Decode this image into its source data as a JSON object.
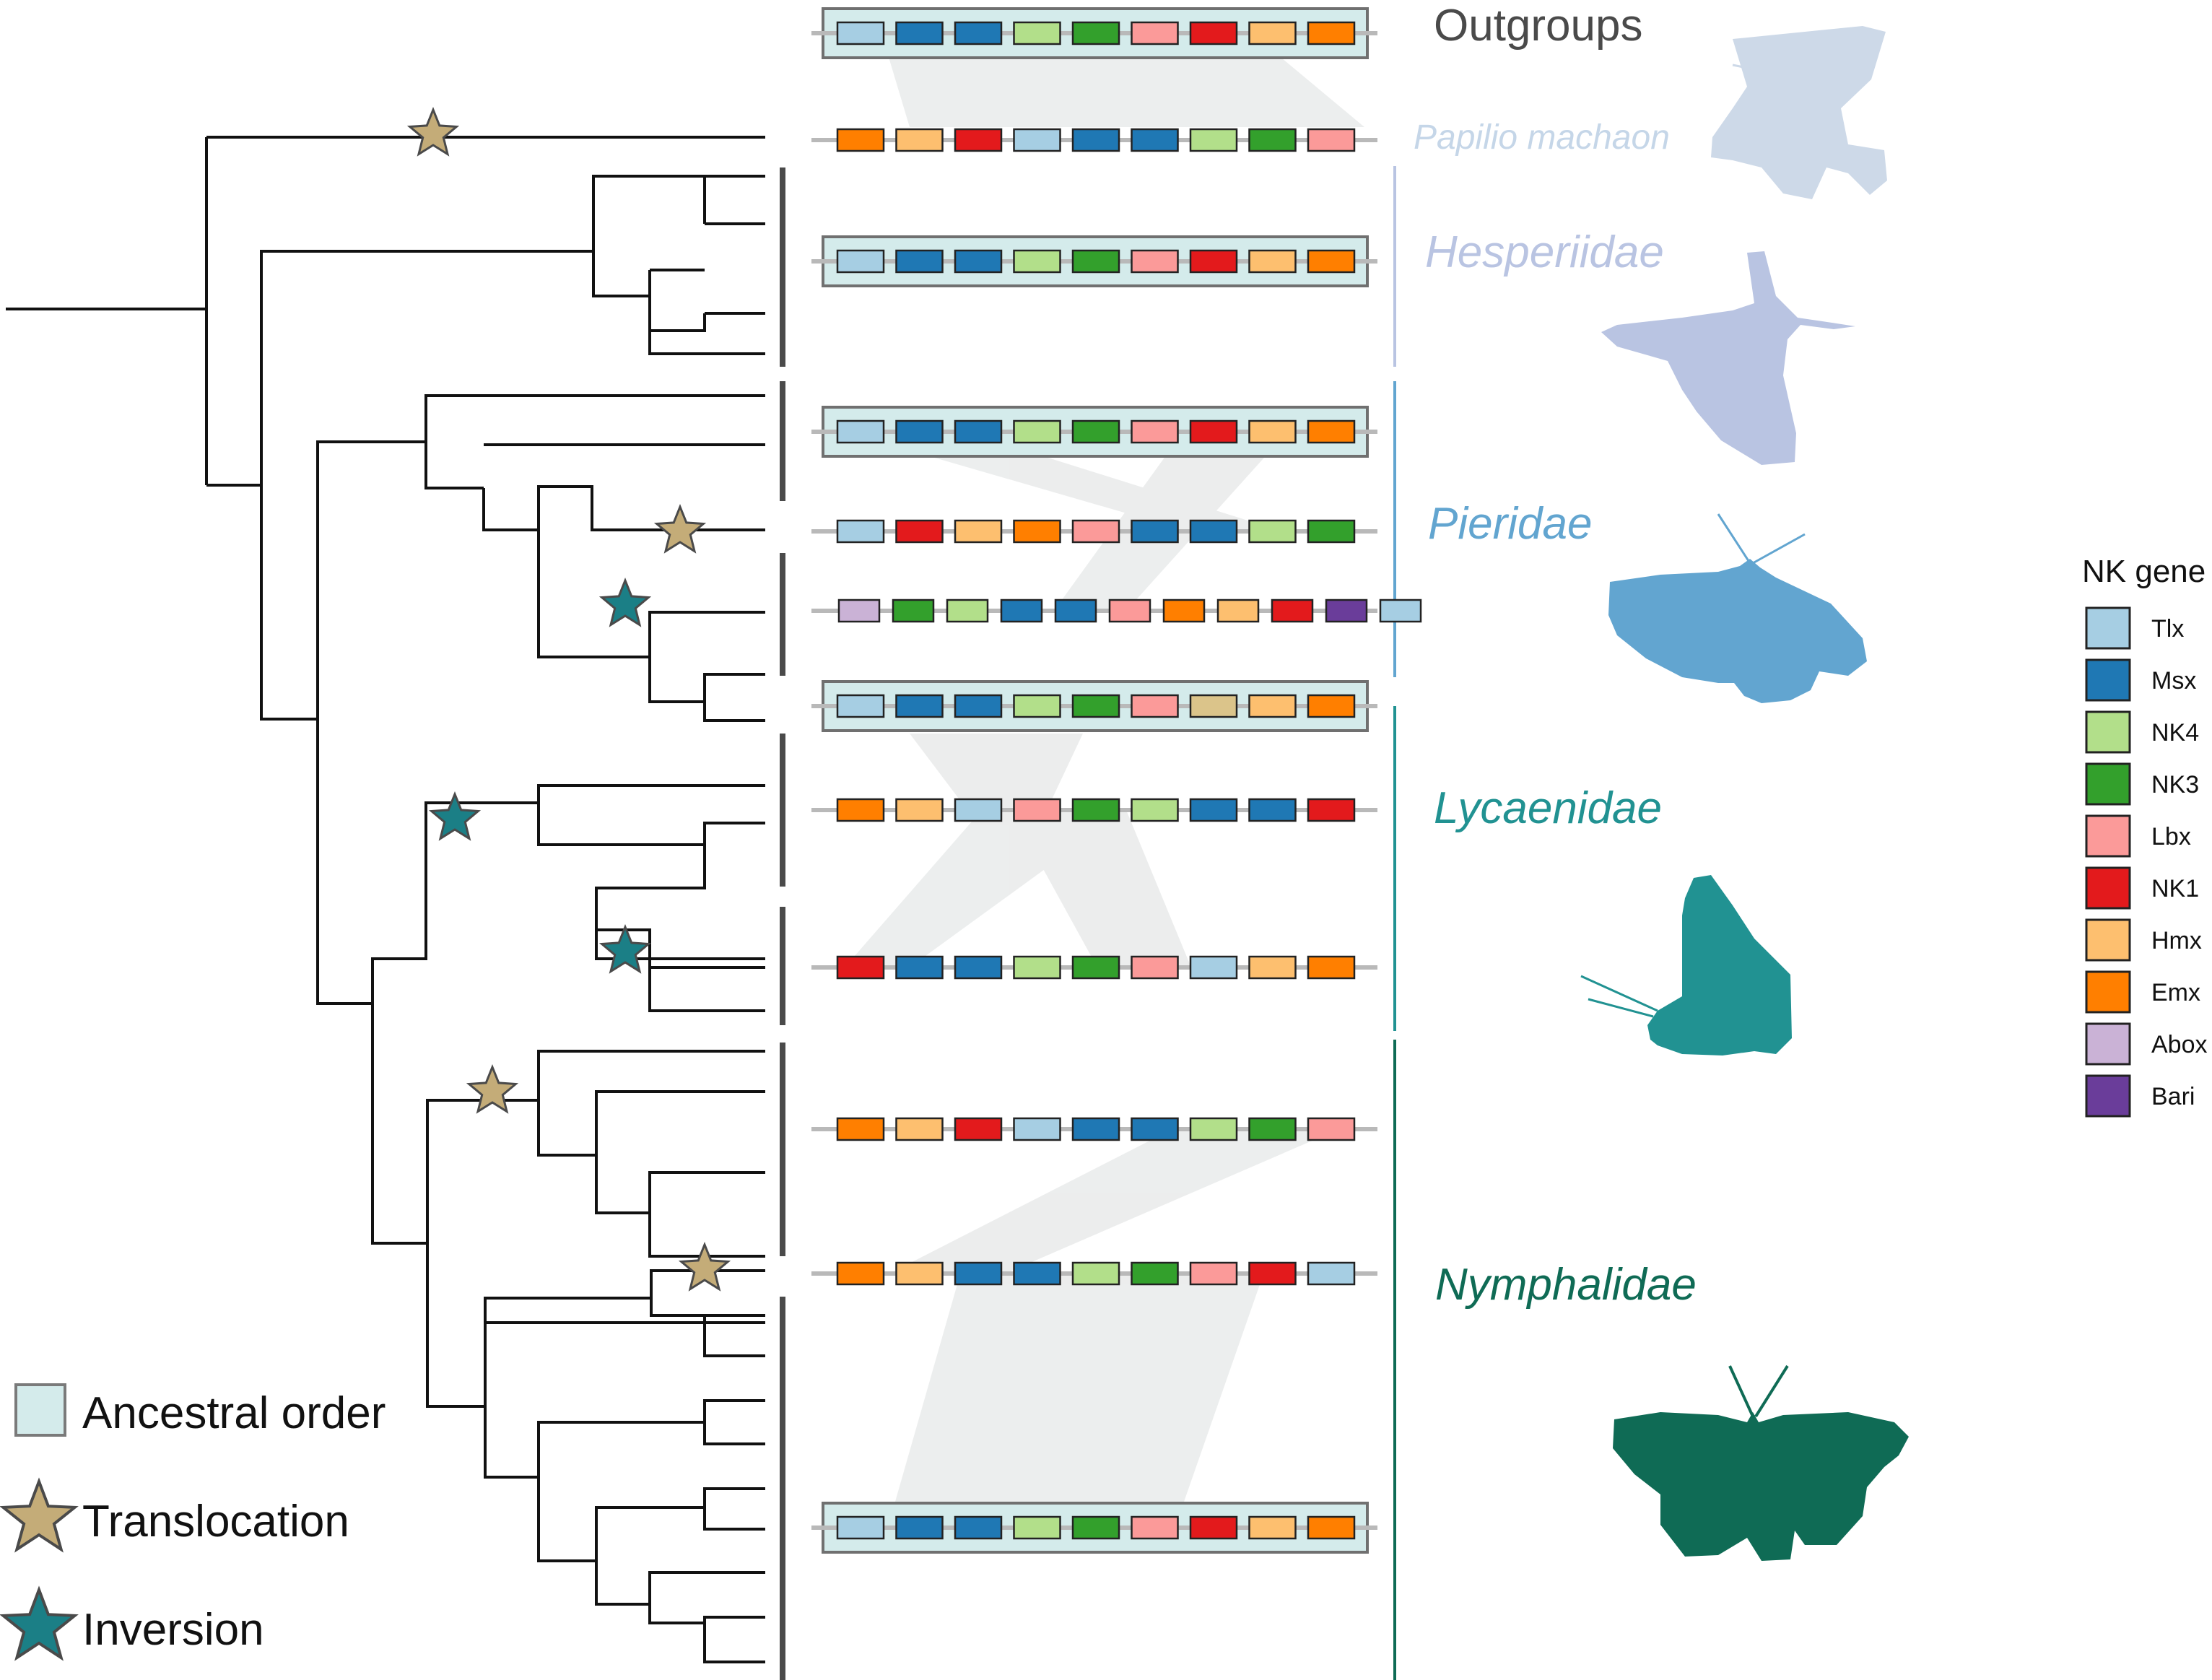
{
  "labels": {
    "outgroups": "Outgroups",
    "species": "Papilio machaon",
    "families": [
      {
        "key": "hesperiidae",
        "name": "Hesperiidae",
        "color": "#b9c4e2"
      },
      {
        "key": "pieridae",
        "name": "Pieridae",
        "color": "#62a5d0"
      },
      {
        "key": "lycaenidae",
        "name": "Lycaenidae",
        "color": "#219292"
      },
      {
        "key": "nymphalidae",
        "name": "Nymphalidae",
        "color": "#0f6b55"
      }
    ]
  },
  "legend": {
    "ancestral_order": "Ancestral order",
    "translocation": "Translocation",
    "inversion": "Inversion"
  },
  "gene_legend": {
    "title": "NK gene",
    "genes": [
      {
        "key": "Tlx",
        "label": "Tlx",
        "color": "#a6cee3"
      },
      {
        "key": "Msx",
        "label": "Msx",
        "color": "#1f78b4"
      },
      {
        "key": "NK4",
        "label": "NK4",
        "color": "#b2df8a"
      },
      {
        "key": "NK3",
        "label": "NK3",
        "color": "#33a02c"
      },
      {
        "key": "Lbx",
        "label": "Lbx",
        "color": "#fb9a99"
      },
      {
        "key": "NK1",
        "label": "NK1",
        "color": "#e31a1c"
      },
      {
        "key": "Hmx",
        "label": "Hmx",
        "color": "#fdbf6f"
      },
      {
        "key": "Emx",
        "label": "Emx",
        "color": "#ff7f00"
      },
      {
        "key": "Abox",
        "label": "Abox",
        "color": "#cab2d6"
      },
      {
        "key": "Bari",
        "label": "Bari",
        "color": "#6a3d9a"
      }
    ]
  },
  "colors": {
    "ancestral_box": "#d4ebeb",
    "translocation_star": "#c4ac78",
    "inversion_star": "#1b7f86",
    "synteny_band": "#e6e8e8",
    "tan_block": "#dbc48a"
  },
  "gene_rows": [
    {
      "ancestral": true,
      "genes": [
        "Tlx",
        "Msx",
        "Msx",
        "NK4",
        "NK3",
        "Lbx",
        "NK1",
        "Hmx",
        "Emx"
      ]
    },
    {
      "ancestral": false,
      "genes": [
        "Emx",
        "Hmx",
        "NK1",
        "Tlx",
        "Msx",
        "Msx",
        "NK4",
        "NK3",
        "Lbx"
      ]
    },
    {
      "ancestral": true,
      "genes": [
        "Tlx",
        "Msx",
        "Msx",
        "NK4",
        "NK3",
        "Lbx",
        "NK1",
        "Hmx",
        "Emx"
      ]
    },
    {
      "ancestral": true,
      "genes": [
        "Tlx",
        "Msx",
        "Msx",
        "NK4",
        "NK3",
        "Lbx",
        "NK1",
        "Hmx",
        "Emx"
      ]
    },
    {
      "ancestral": false,
      "genes": [
        "Tlx",
        "NK1",
        "Hmx",
        "Emx",
        "Lbx",
        "Msx",
        "Msx",
        "NK4",
        "NK3"
      ]
    },
    {
      "ancestral": false,
      "genes": [
        "Abox",
        "NK3",
        "NK4",
        "Msx",
        "Msx",
        "Lbx",
        "Emx",
        "Hmx",
        "NK1",
        "Bari",
        "Tlx"
      ]
    },
    {
      "ancestral": true,
      "genes": [
        "Tlx",
        "Msx",
        "Msx",
        "NK4",
        "NK3",
        "Lbx",
        "tan",
        "Hmx",
        "Emx"
      ]
    },
    {
      "ancestral": false,
      "genes": [
        "Emx",
        "Hmx",
        "Tlx",
        "Lbx",
        "NK3",
        "NK4",
        "Msx",
        "Msx",
        "NK1"
      ]
    },
    {
      "ancestral": false,
      "genes": [
        "NK1",
        "Msx",
        "Msx",
        "NK4",
        "NK3",
        "Lbx",
        "Tlx",
        "Hmx",
        "Emx"
      ]
    },
    {
      "ancestral": false,
      "genes": [
        "Emx",
        "Hmx",
        "NK1",
        "Tlx",
        "Msx",
        "Msx",
        "NK4",
        "NK3",
        "Lbx"
      ]
    },
    {
      "ancestral": false,
      "genes": [
        "Emx",
        "Hmx",
        "Msx",
        "Msx",
        "NK4",
        "NK3",
        "Lbx",
        "NK1",
        "Tlx"
      ]
    },
    {
      "ancestral": true,
      "genes": [
        "Tlx",
        "Msx",
        "Msx",
        "NK4",
        "NK3",
        "Lbx",
        "NK1",
        "Hmx",
        "Emx"
      ]
    }
  ]
}
